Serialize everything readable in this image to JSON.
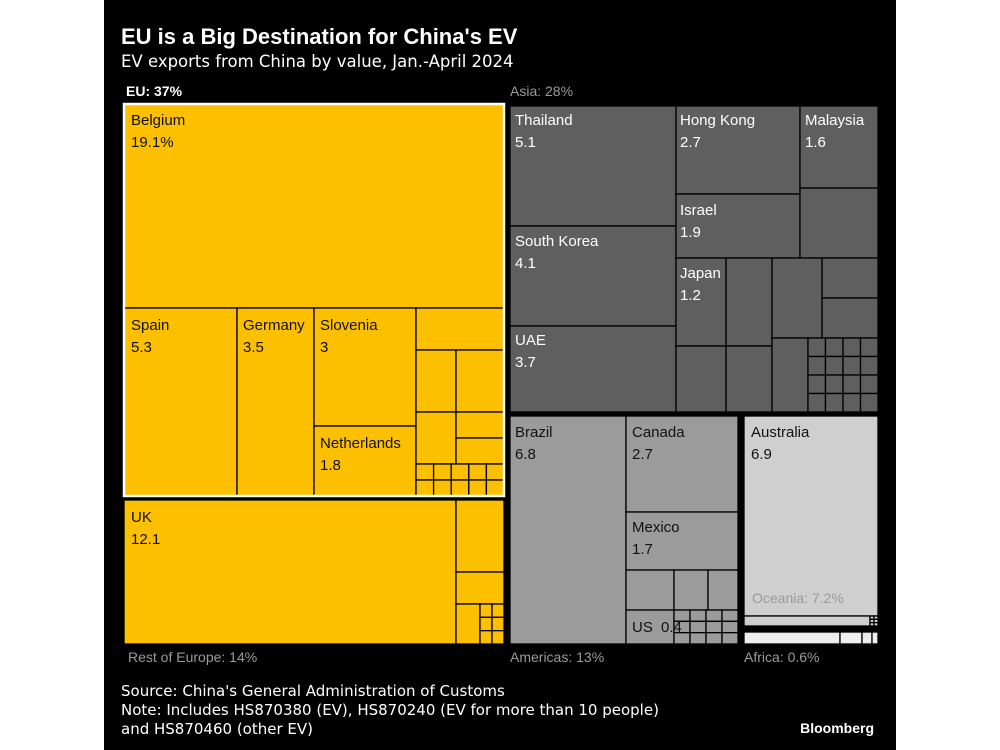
{
  "header": {
    "title": "EU is a Big Destination for China's EV",
    "subtitle": "EV exports from China by value, Jan.-April 2024"
  },
  "footer": {
    "source": "Source: China's General Administration of Customs",
    "note_line1": "Note: Includes HS870380 (EV), HS870240 (EV for more than 10 people)",
    "note_line2": "and HS870460 (other EV)",
    "brand": "Bloomberg"
  },
  "colors": {
    "europe": "#fcc000",
    "asia": "#5f5f5f",
    "americas": "#9b9b9b",
    "oceania": "#cfcfcf",
    "africa": "#eeeeee",
    "background": "#000000"
  },
  "chart_data": {
    "type": "treemap",
    "unit": "%",
    "groups": [
      {
        "label": "EU: 37%",
        "share": 37,
        "highlighted": true,
        "leaves": [
          {
            "name": "Belgium",
            "value_label": "19.1%",
            "value": 19.1
          },
          {
            "name": "Spain",
            "value_label": "5.3",
            "value": 5.3
          },
          {
            "name": "Germany",
            "value_label": "3.5",
            "value": 3.5
          },
          {
            "name": "Slovenia",
            "value_label": "3",
            "value": 3
          },
          {
            "name": "Netherlands",
            "value_label": "1.8",
            "value": 1.8
          }
        ]
      },
      {
        "label": "Rest of Europe: 14%",
        "share": 14,
        "leaves": [
          {
            "name": "UK",
            "value_label": "12.1",
            "value": 12.1
          }
        ]
      },
      {
        "label": "Asia: 28%",
        "share": 28,
        "leaves": [
          {
            "name": "Thailand",
            "value_label": "5.1",
            "value": 5.1
          },
          {
            "name": "Hong Kong",
            "value_label": "2.7",
            "value": 2.7
          },
          {
            "name": "Malaysia",
            "value_label": "1.6",
            "value": 1.6
          },
          {
            "name": "Israel",
            "value_label": "1.9",
            "value": 1.9
          },
          {
            "name": "South Korea",
            "value_label": "4.1",
            "value": 4.1
          },
          {
            "name": "Japan",
            "value_label": "1.2",
            "value": 1.2
          },
          {
            "name": "UAE",
            "value_label": "3.7",
            "value": 3.7
          }
        ]
      },
      {
        "label": "Americas: 13%",
        "share": 13,
        "leaves": [
          {
            "name": "Brazil",
            "value_label": "6.8",
            "value": 6.8
          },
          {
            "name": "Canada",
            "value_label": "2.7",
            "value": 2.7
          },
          {
            "name": "Mexico",
            "value_label": "1.7",
            "value": 1.7
          },
          {
            "name": "US",
            "value_label": "0.4",
            "value": 0.4
          }
        ]
      },
      {
        "label": "Oceania: 7.2%",
        "share": 7.2,
        "leaves": [
          {
            "name": "Australia",
            "value_label": "6.9",
            "value": 6.9
          }
        ]
      },
      {
        "label": "Africa: 0.6%",
        "share": 0.6,
        "leaves": []
      }
    ]
  }
}
